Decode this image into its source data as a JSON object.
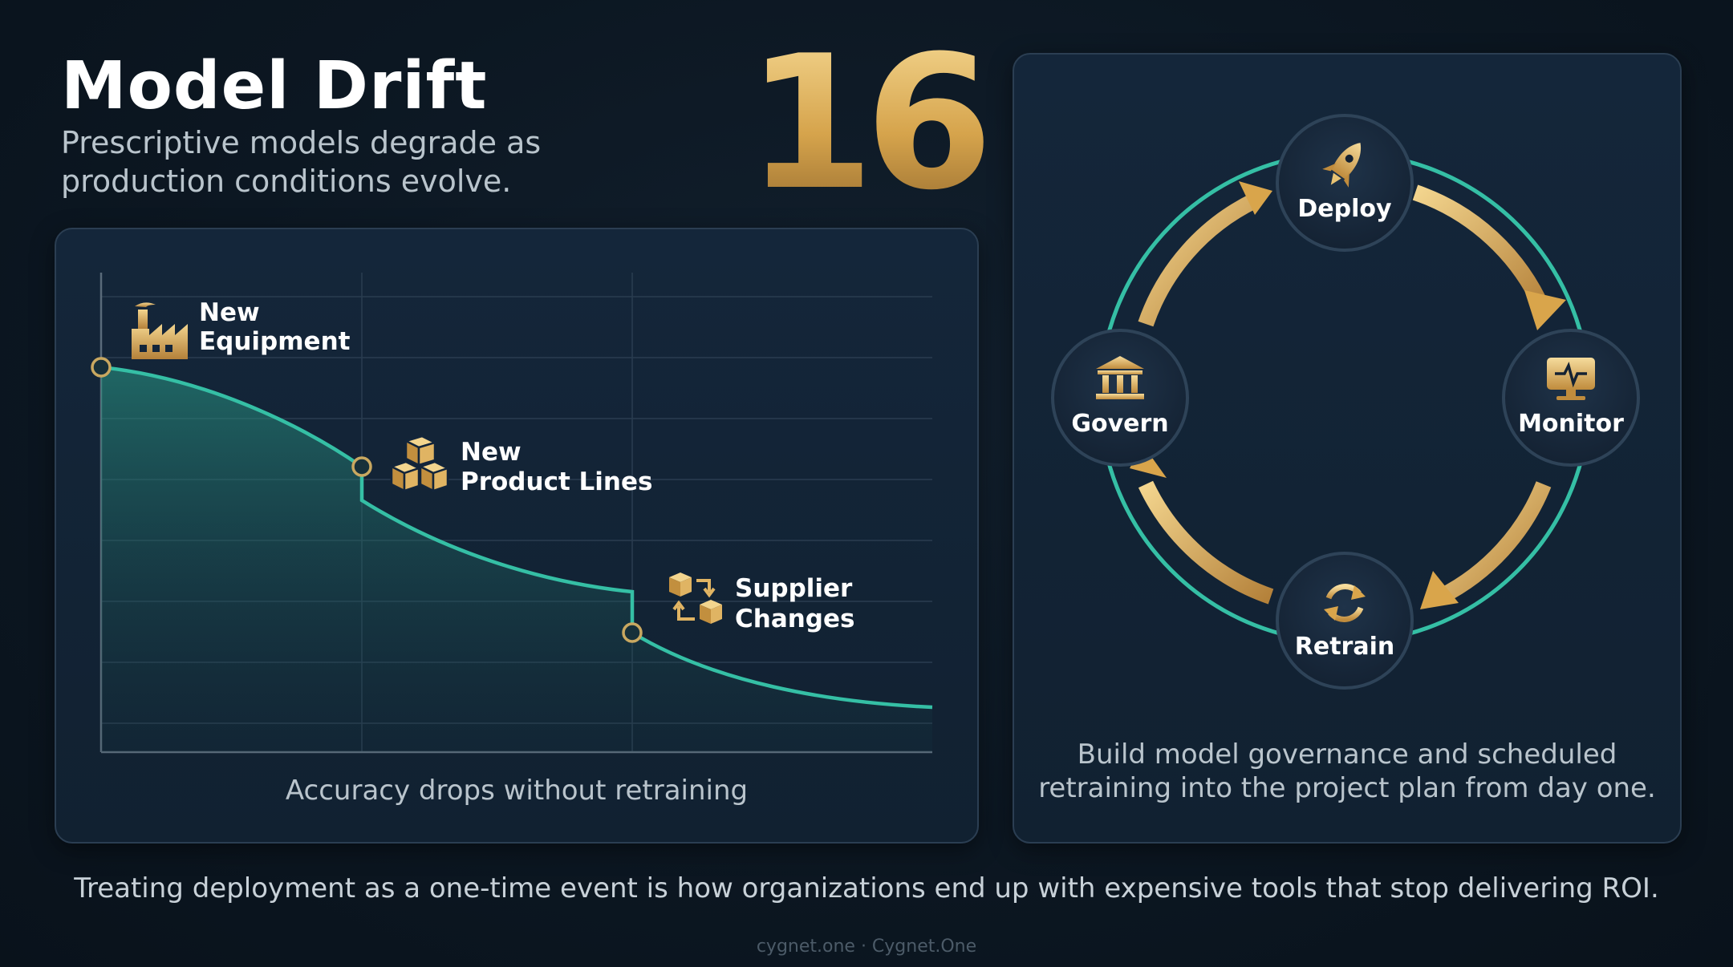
{
  "header": {
    "title": "Model Drift",
    "subtitle": "Prescriptive models degrade as production conditions evolve.",
    "number": "16"
  },
  "chart": {
    "events": [
      {
        "line1": "New",
        "line2": "Equipment",
        "icon": "factory-icon"
      },
      {
        "line1": "New",
        "line2": "Product Lines",
        "icon": "boxes-icon"
      },
      {
        "line1": "Supplier",
        "line2": "Changes",
        "icon": "supplier-swap-icon"
      }
    ],
    "caption": "Accuracy drops without retraining"
  },
  "cycle": {
    "nodes": [
      {
        "label": "Deploy",
        "icon": "rocket-icon"
      },
      {
        "label": "Monitor",
        "icon": "monitor-pulse-icon"
      },
      {
        "label": "Retrain",
        "icon": "refresh-icon"
      },
      {
        "label": "Govern",
        "icon": "bank-icon"
      }
    ],
    "caption_line1": "Build model governance and scheduled",
    "caption_line2": "retraining into the project plan from day one."
  },
  "tagline": "Treating deployment as a one-time event is how organizations end up with expensive tools that stop delivering ROI.",
  "footer": "cygnet.one · Cygnet.One",
  "colors": {
    "background": "#0c1722",
    "panel": "#13253a",
    "teal": "#35bfa5",
    "gold": "#d9a54b",
    "text_muted": "#b9c4cc"
  }
}
